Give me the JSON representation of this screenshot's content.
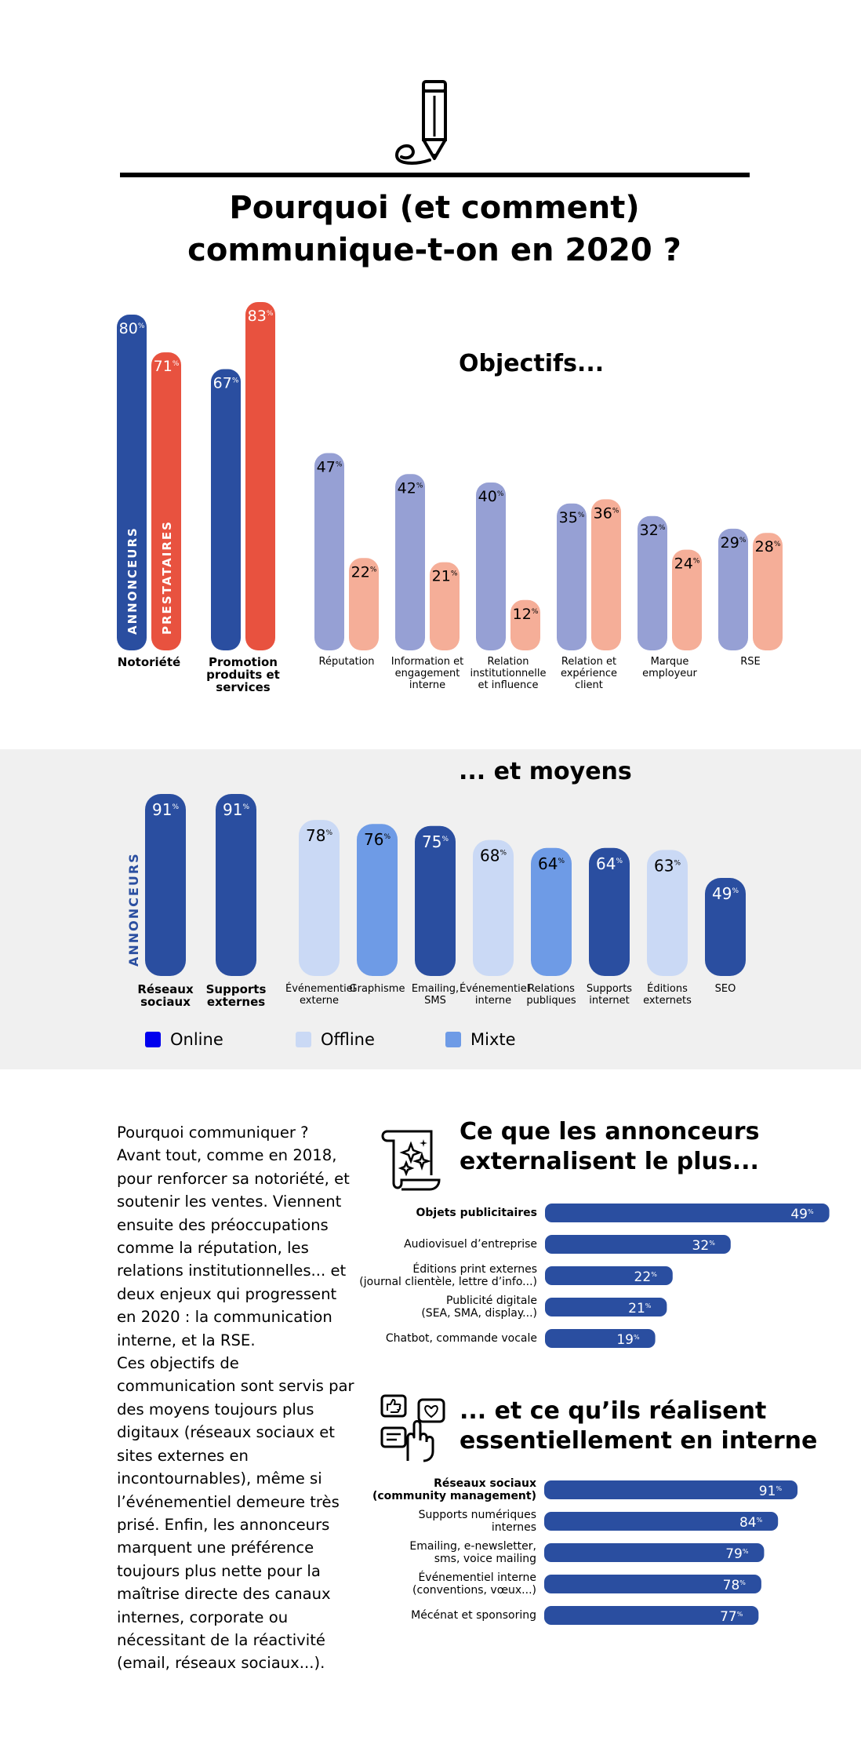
{
  "header": {
    "icon": "pen-writing-icon",
    "title_line1": "Pourquoi (et comment)",
    "title_line2": "communique-t-on en 2020 ?"
  },
  "objectifs": {
    "title": "Objectifs...",
    "series_labels": {
      "annonceurs": "ANNONCEURS",
      "prestataires": "PRESTATAIRES"
    },
    "colors": {
      "annonceurs_main": "#2a4ea0",
      "prestataires_main": "#e8523f",
      "annonceurs_light": "#96a0d4",
      "prestataires_light": "#f5ae98"
    }
  },
  "moyens": {
    "title": "... et moyens",
    "side_label": "ANNONCEURS",
    "legend": [
      {
        "label": "Online",
        "color": "#0000ee"
      },
      {
        "label": "Offline",
        "color": "#cad9f5"
      },
      {
        "label": "Mixte",
        "color": "#6e9be6"
      }
    ]
  },
  "intro_text": "Pourquoi communiquer ?\nAvant tout, comme en 2018, pour renforcer sa notoriété, et soutenir les ventes. Viennent ensuite des préoccupations comme la réputation, les relations institutionnelles... et deux enjeux qui progressent en 2020 : la communication interne, et la RSE.\nCes objectifs de communication sont servis par des moyens toujours plus digitaux (réseaux sociaux et sites externes en incontournables), même si l’événementiel demeure très prisé. Enfin, les annonceurs marquent une préférence toujours plus nette pour la maîtrise directe des canaux internes, corporate ou nécessitant de la réactivité (email, réseaux sociaux...).",
  "externalisent": {
    "title_line1": "Ce que les annonceurs",
    "title_line2": "externalisent le plus...",
    "icon": "scroll-sparkles-icon"
  },
  "interne": {
    "title_line1": "... et ce qu’ils réalisent",
    "title_line2": "essentiellement en interne",
    "icon": "social-media-hand-icon"
  },
  "chart_data": [
    {
      "type": "bar",
      "title": "Objectifs...",
      "categories": [
        "Notoriété",
        "Promotion produits et services",
        "Réputation",
        "Information et engagement interne",
        "Relation institutionnelle et influence",
        "Relation et expérience client",
        "Marque employeur",
        "RSE"
      ],
      "series": [
        {
          "name": "ANNONCEURS",
          "values": [
            80,
            67,
            47,
            42,
            40,
            35,
            32,
            29
          ]
        },
        {
          "name": "PRESTATAIRES",
          "values": [
            71,
            83,
            22,
            21,
            12,
            36,
            24,
            28
          ]
        }
      ],
      "unit": "%",
      "ylim": [
        0,
        100
      ]
    },
    {
      "type": "bar",
      "title": "... et moyens",
      "categories": [
        "Réseaux sociaux",
        "Supports externes",
        "Événementiel externe",
        "Graphisme",
        "Emailing, SMS",
        "Événementiel interne",
        "Relations publiques",
        "Supports internet",
        "Éditions externets",
        "SEO"
      ],
      "values": [
        91,
        91,
        78,
        76,
        75,
        68,
        64,
        64,
        63,
        49
      ],
      "kinds": [
        "online",
        "online",
        "offline",
        "mixte",
        "online",
        "offline",
        "mixte",
        "online",
        "offline",
        "online"
      ],
      "unit": "%",
      "ylim": [
        0,
        100
      ]
    },
    {
      "type": "bar",
      "orientation": "horizontal",
      "title": "Ce que les annonceurs externalisent le plus...",
      "categories": [
        "Objets publicitaires",
        "Audiovisuel d’entreprise",
        "Éditions print externes (journal clientèle, lettre d’info...)",
        "Publicité digitale (SEA, SMA, display...)",
        "Chatbot, commande vocale"
      ],
      "values": [
        49,
        32,
        22,
        21,
        19
      ],
      "unit": "%",
      "xlim": [
        0,
        50
      ]
    },
    {
      "type": "bar",
      "orientation": "horizontal",
      "title": "... et ce qu’ils réalisent essentiellement en interne",
      "categories": [
        "Réseaux sociaux (community management)",
        "Supports numériques internes",
        "Emailing, e-newsletter, sms, voice mailing",
        "Événementiel interne (conventions, vœux...)",
        "Mécénat et sponsoring"
      ],
      "values": [
        91,
        84,
        79,
        78,
        77
      ],
      "unit": "%",
      "xlim": [
        0,
        100
      ]
    }
  ]
}
